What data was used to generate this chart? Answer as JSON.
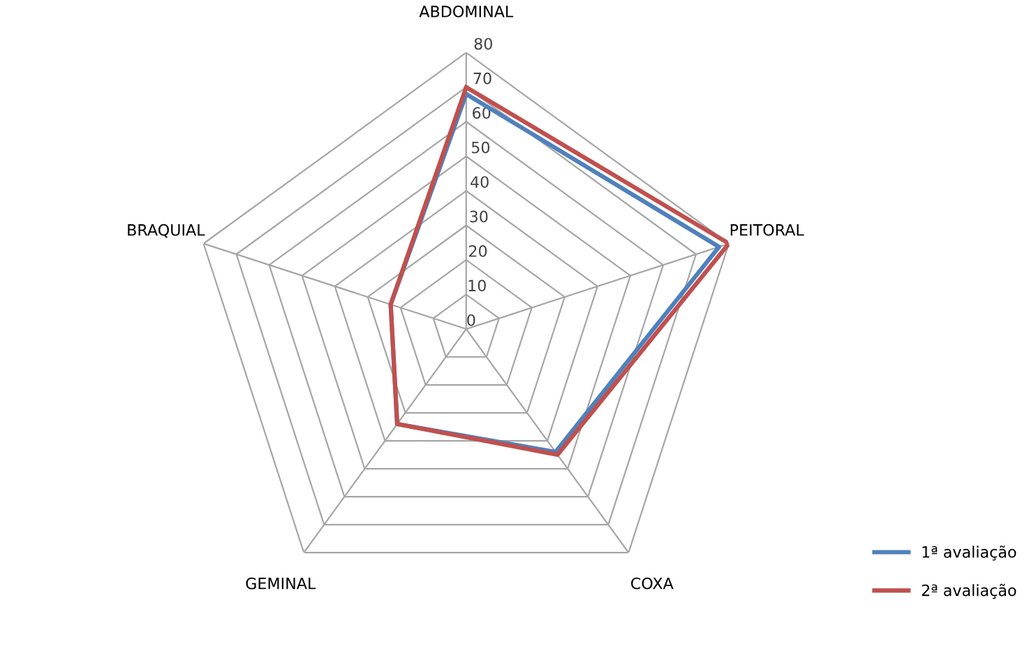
{
  "chart_data": {
    "type": "radar",
    "categories": [
      "ABDOMINAL",
      "PEITORAL",
      "COXA",
      "GEMINAL",
      "BRAQUIAL"
    ],
    "series": [
      {
        "name": "1ª avaliação",
        "color": "#4f81bd",
        "values": [
          68,
          77,
          44,
          34,
          23
        ]
      },
      {
        "name": "2ª avaliação",
        "color": "#c0504d",
        "values": [
          70,
          80,
          45,
          34,
          23
        ]
      }
    ],
    "ylim": [
      0,
      80
    ],
    "yticks": [
      0,
      10,
      20,
      30,
      40,
      50,
      60,
      70,
      80
    ],
    "grid": true,
    "legend": "right",
    "marker": "none",
    "line_style": "solid"
  }
}
